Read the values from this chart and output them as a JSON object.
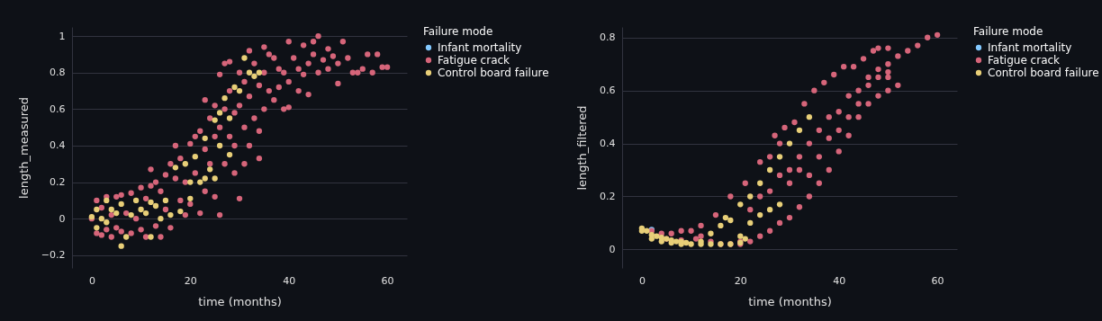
{
  "chart_data": [
    {
      "type": "scatter",
      "xlabel": "time (months)",
      "ylabel": "length_measured",
      "legend_title": "Failure mode",
      "legend": "top right",
      "grid": "y",
      "marker": "circle",
      "xlim": [
        -4,
        64
      ],
      "ylim": [
        -0.27,
        1.05
      ],
      "xticks": [
        0,
        20,
        40,
        60
      ],
      "yticks": [
        -0.2,
        0,
        0.2,
        0.4,
        0.6,
        0.8,
        1
      ],
      "series": [
        {
          "name": "Infant mortality",
          "color": "#83c9ff"
        },
        {
          "name": "Fatigue crack",
          "color": "#d6657a",
          "x": [
            0,
            1,
            1,
            2,
            2,
            3,
            3,
            4,
            4,
            5,
            5,
            6,
            6,
            7,
            8,
            8,
            9,
            10,
            10,
            11,
            11,
            12,
            12,
            13,
            13,
            14,
            14,
            15,
            15,
            16,
            16,
            17,
            17,
            18,
            18,
            19,
            19,
            20,
            20,
            21,
            21,
            22,
            22,
            23,
            23,
            23,
            24,
            24,
            25,
            25,
            25,
            26,
            26,
            26,
            27,
            27,
            27,
            28,
            28,
            28,
            29,
            29,
            29,
            30,
            30,
            30,
            31,
            31,
            31,
            32,
            32,
            32,
            33,
            33,
            34,
            34,
            34,
            35,
            35,
            35,
            36,
            36,
            37,
            37,
            38,
            38,
            39,
            39,
            40,
            40,
            40,
            41,
            42,
            42,
            43,
            43,
            44,
            44,
            45,
            45,
            46,
            46,
            47,
            48,
            48,
            49,
            50,
            50,
            51,
            52,
            53,
            54,
            55,
            56,
            57,
            58,
            59,
            60
          ],
          "values": [
            0.0,
            0.1,
            -0.08,
            0.06,
            -0.09,
            0.12,
            -0.06,
            0.02,
            -0.1,
            0.12,
            -0.05,
            0.13,
            -0.07,
            0.03,
            0.14,
            -0.08,
            0.0,
            0.17,
            -0.06,
            0.11,
            -0.1,
            0.18,
            0.27,
            0.2,
            -0.04,
            0.15,
            -0.1,
            0.24,
            0.05,
            0.3,
            -0.05,
            0.22,
            0.4,
            0.1,
            0.33,
            0.2,
            0.02,
            0.41,
            0.08,
            0.45,
            0.25,
            0.48,
            0.03,
            0.38,
            0.15,
            0.65,
            0.55,
            0.3,
            0.62,
            0.45,
            0.12,
            0.79,
            0.5,
            0.02,
            0.6,
            0.3,
            0.85,
            0.7,
            0.45,
            0.86,
            0.58,
            0.4,
            0.25,
            0.8,
            0.62,
            0.11,
            0.75,
            0.5,
            0.3,
            0.92,
            0.67,
            0.4,
            0.85,
            0.55,
            0.73,
            0.48,
            0.33,
            0.94,
            0.8,
            0.6,
            0.9,
            0.7,
            0.88,
            0.65,
            0.82,
            0.72,
            0.8,
            0.6,
            0.97,
            0.75,
            0.61,
            0.88,
            0.82,
            0.7,
            0.95,
            0.79,
            0.85,
            0.68,
            0.9,
            0.97,
            1.0,
            0.8,
            0.87,
            0.93,
            0.82,
            0.89,
            0.74,
            0.85,
            0.97,
            0.88,
            0.8,
            0.8,
            0.82,
            0.9,
            0.8,
            0.9,
            0.83,
            0.83
          ]
        },
        {
          "name": "Control board failure",
          "color": "#e8cf78",
          "x": [
            0,
            1,
            1,
            2,
            3,
            3,
            4,
            5,
            6,
            6,
            7,
            8,
            9,
            10,
            11,
            12,
            12,
            13,
            14,
            15,
            16,
            17,
            18,
            19,
            20,
            20,
            21,
            22,
            23,
            23,
            24,
            25,
            25,
            26,
            26,
            27,
            28,
            28,
            29,
            30,
            31,
            32,
            33,
            34
          ],
          "values": [
            0.01,
            -0.05,
            0.05,
            0.0,
            0.1,
            -0.02,
            0.05,
            0.03,
            -0.15,
            0.08,
            -0.1,
            0.02,
            0.1,
            0.05,
            0.03,
            -0.1,
            0.09,
            0.07,
            0.0,
            0.1,
            0.02,
            0.28,
            0.04,
            0.3,
            0.2,
            0.11,
            0.34,
            0.2,
            0.44,
            0.22,
            0.27,
            0.54,
            0.22,
            0.4,
            0.58,
            0.66,
            0.55,
            0.35,
            0.72,
            0.7,
            0.88,
            0.8,
            0.78,
            0.8
          ]
        }
      ]
    },
    {
      "type": "scatter",
      "xlabel": "time (months)",
      "ylabel": "length_filtered",
      "legend_title": "Failure mode",
      "legend": "top right",
      "grid": "y",
      "marker": "circle",
      "xlim": [
        -4,
        64
      ],
      "ylim": [
        -0.07,
        0.84
      ],
      "xticks": [
        0,
        20,
        40,
        60
      ],
      "yticks": [
        0,
        0.2,
        0.4,
        0.6,
        0.8
      ],
      "series": [
        {
          "name": "Infant mortality",
          "color": "#83c9ff",
          "x": [
            2
          ],
          "values": [
            0.075
          ]
        },
        {
          "name": "Fatigue crack",
          "color": "#d6657a",
          "x": [
            2,
            4,
            6,
            8,
            10,
            12,
            14,
            16,
            18,
            20,
            5,
            8,
            11,
            12,
            15,
            18,
            21,
            24,
            27,
            29,
            31,
            33,
            35,
            37,
            39,
            41,
            43,
            45,
            47,
            48,
            50,
            52,
            54,
            56,
            58,
            60,
            20,
            22,
            24,
            26,
            28,
            30,
            32,
            34,
            36,
            38,
            40,
            42,
            44,
            46,
            48,
            50,
            52,
            22,
            24,
            26,
            28,
            30,
            32,
            34,
            36,
            38,
            40,
            42,
            44,
            46,
            48,
            50,
            26,
            28,
            30,
            32,
            34,
            36,
            38,
            40,
            42,
            44,
            46,
            48,
            50,
            50
          ],
          "values": [
            0.07,
            0.06,
            0.06,
            0.07,
            0.07,
            0.05,
            0.03,
            0.02,
            0.02,
            0.03,
            0.04,
            0.035,
            0.04,
            0.09,
            0.13,
            0.2,
            0.25,
            0.33,
            0.43,
            0.46,
            0.48,
            0.55,
            0.6,
            0.63,
            0.66,
            0.69,
            0.69,
            0.72,
            0.75,
            0.76,
            0.76,
            0.73,
            0.75,
            0.77,
            0.8,
            0.81,
            0.02,
            0.03,
            0.05,
            0.07,
            0.1,
            0.12,
            0.16,
            0.2,
            0.25,
            0.3,
            0.37,
            0.43,
            0.5,
            0.55,
            0.58,
            0.6,
            0.62,
            0.15,
            0.2,
            0.22,
            0.28,
            0.3,
            0.35,
            0.4,
            0.45,
            0.5,
            0.52,
            0.58,
            0.6,
            0.62,
            0.65,
            0.67,
            0.35,
            0.4,
            0.25,
            0.3,
            0.28,
            0.35,
            0.42,
            0.45,
            0.5,
            0.55,
            0.65,
            0.68,
            0.7,
            0.65
          ]
        },
        {
          "name": "Control board failure",
          "color": "#e8cf78",
          "x": [
            0,
            1,
            2,
            3,
            4,
            5,
            6,
            7,
            8,
            9,
            12,
            14,
            16,
            18,
            20,
            0,
            2,
            4,
            6,
            8,
            10,
            12,
            14,
            16,
            18,
            21,
            22,
            17,
            20,
            22,
            24,
            26,
            28,
            30,
            32,
            34,
            20,
            24,
            26,
            28
          ],
          "values": [
            0.08,
            0.07,
            0.055,
            0.05,
            0.045,
            0.04,
            0.035,
            0.03,
            0.03,
            0.025,
            0.02,
            0.02,
            0.02,
            0.02,
            0.025,
            0.07,
            0.04,
            0.03,
            0.025,
            0.02,
            0.02,
            0.03,
            0.06,
            0.09,
            0.11,
            0.04,
            0.1,
            0.12,
            0.17,
            0.2,
            0.25,
            0.3,
            0.35,
            0.4,
            0.45,
            0.5,
            0.05,
            0.13,
            0.15,
            0.17
          ]
        }
      ]
    }
  ]
}
